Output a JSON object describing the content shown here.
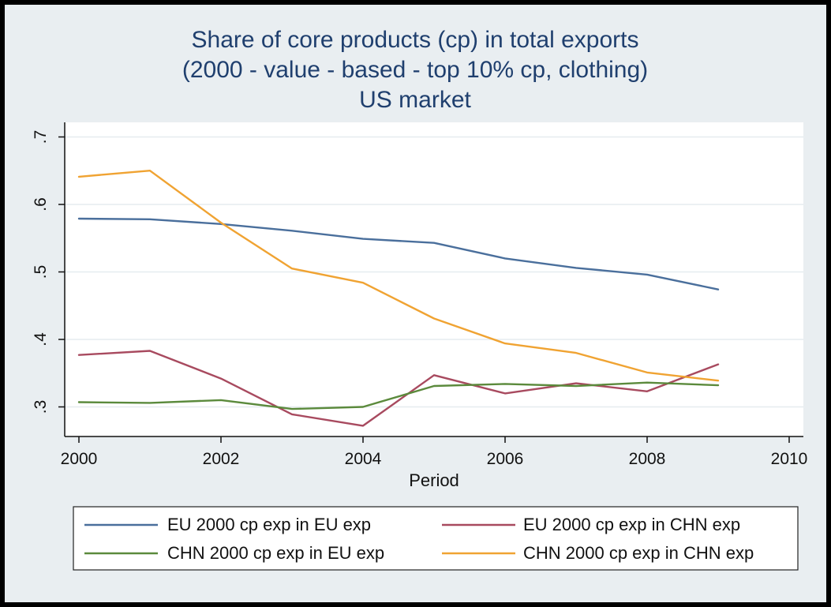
{
  "chart_data": {
    "type": "line",
    "title": [
      "Share of core products (cp) in total exports",
      "(2000 - value - based - top 10% cp, clothing)",
      "US market"
    ],
    "xlabel": "Period",
    "ylabel": "",
    "xlim": [
      2000,
      2010
    ],
    "ylim": [
      0.25,
      0.72
    ],
    "x_ticks": [
      2000,
      2002,
      2004,
      2006,
      2008,
      2010
    ],
    "x_tick_labels": [
      "2000",
      "2002",
      "2004",
      "2006",
      "2008",
      "2010"
    ],
    "y_ticks": [
      0.3,
      0.4,
      0.5,
      0.6,
      0.7
    ],
    "y_tick_labels": [
      ".3",
      ".4",
      ".5",
      ".6",
      ".7"
    ],
    "grid": "horizontal",
    "legend_position": "bottom",
    "x": [
      2000,
      2001,
      2002,
      2003,
      2004,
      2005,
      2006,
      2007,
      2008,
      2009
    ],
    "series": [
      {
        "name": "EU 2000 cp exp in EU exp",
        "color": "#4a6f9c",
        "values": [
          0.579,
          0.578,
          0.571,
          0.561,
          0.549,
          0.543,
          0.52,
          0.506,
          0.496,
          0.474
        ]
      },
      {
        "name": "EU 2000 cp exp in CHN exp",
        "color": "#a84a5f",
        "values": [
          0.377,
          0.383,
          0.342,
          0.289,
          0.272,
          0.347,
          0.32,
          0.335,
          0.323,
          0.363
        ]
      },
      {
        "name": "CHN 2000 cp exp in EU exp",
        "color": "#5b8a3c",
        "values": [
          0.307,
          0.306,
          0.31,
          0.297,
          0.3,
          0.331,
          0.334,
          0.331,
          0.336,
          0.332
        ]
      },
      {
        "name": "CHN 2000 cp exp in CHN exp",
        "color": "#f0a332",
        "values": [
          0.641,
          0.65,
          0.573,
          0.505,
          0.484,
          0.431,
          0.394,
          0.38,
          0.351,
          0.339
        ]
      }
    ]
  }
}
